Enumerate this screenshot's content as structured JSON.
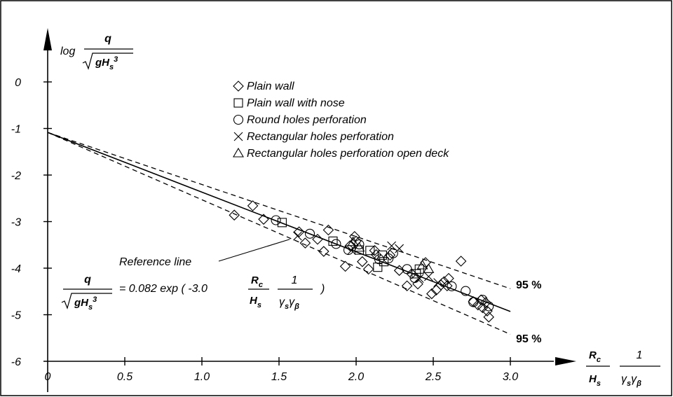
{
  "chart_data": {
    "type": "scatter",
    "title": "",
    "x_axis": {
      "range": [
        0,
        3.0
      ],
      "ticks": [
        0,
        0.5,
        1.0,
        1.5,
        2.0,
        2.5,
        3.0
      ],
      "tick_labels": [
        "0",
        "0.5",
        "1.0",
        "1.5",
        "2.0",
        "2.5",
        "3.0"
      ],
      "label": {
        "num_main": "R",
        "num_sub": "c",
        "den_main": "H",
        "den_sub": "s",
        "factor_num": "1",
        "factor_den_1": "γ",
        "factor_den_sub1": "s",
        "factor_den_2": "γ",
        "factor_den_sub2": "β"
      }
    },
    "y_axis": {
      "range": [
        -6,
        0
      ],
      "ticks": [
        0,
        -1,
        -2,
        -3,
        -4,
        -5,
        -6
      ],
      "tick_labels": [
        "0",
        "-1",
        "-2",
        "-3",
        "-4",
        "-5",
        "-6"
      ],
      "label": {
        "prefix": "log",
        "num": "q",
        "den_main": "gH",
        "den_sub": "s",
        "den_sup": "3"
      }
    },
    "grid": false,
    "legend": {
      "placement": "top-center",
      "entries": [
        {
          "marker": "diamond",
          "label": "Plain wall"
        },
        {
          "marker": "square",
          "label": "Plain wall with nose"
        },
        {
          "marker": "circle",
          "label": "Round holes perforation"
        },
        {
          "marker": "cross",
          "label": "Rectangular holes perforation"
        },
        {
          "marker": "triangle",
          "label": "Rectangular holes perforation open deck"
        }
      ]
    },
    "lines": [
      {
        "role": "reference",
        "label": "Reference line",
        "x": [
          0,
          3.0
        ],
        "y": [
          -1.085,
          -4.93
        ]
      },
      {
        "role": "upper-95",
        "label": "95 %",
        "x": [
          0,
          3.0
        ],
        "y": [
          -1.085,
          -4.44
        ]
      },
      {
        "role": "lower-95",
        "label": "95 %",
        "x": [
          0,
          3.0
        ],
        "y": [
          -1.085,
          -5.42
        ]
      }
    ],
    "formula": {
      "lhs_num": "q",
      "lhs_den_main": "gH",
      "lhs_den_sub": "s",
      "lhs_den_sup": "3",
      "rhs_prefix": "= 0.082 exp ( -3.0",
      "rhs_frac1_num_main": "R",
      "rhs_frac1_num_sub": "c",
      "rhs_frac1_den_main": "H",
      "rhs_frac1_den_sub": "s",
      "rhs_frac2_num": "1",
      "rhs_frac2_den_1": "γ",
      "rhs_frac2_den_sub1": "s",
      "rhs_frac2_den_2": "γ",
      "rhs_frac2_den_sub2": "β",
      "rhs_suffix": ")"
    },
    "series": [
      {
        "name": "Plain wall",
        "marker": "diamond",
        "x": [
          1.21,
          1.33,
          1.4,
          1.63,
          1.67,
          1.75,
          1.79,
          1.82,
          1.96,
          1.93,
          1.99,
          2.04,
          2.08,
          2.13,
          2.22,
          2.28,
          2.33,
          2.36,
          2.4,
          2.45,
          2.49,
          2.52,
          2.55,
          2.57,
          2.59,
          2.6,
          2.76,
          2.79,
          2.81,
          2.82,
          2.84,
          2.85,
          2.86,
          2.68,
          2.0,
          2.12
        ],
        "y": [
          -2.86,
          -2.66,
          -2.95,
          -3.22,
          -3.46,
          -3.38,
          -3.64,
          -3.18,
          -3.52,
          -3.96,
          -3.32,
          -3.86,
          -4.02,
          -3.71,
          -3.72,
          -4.05,
          -4.38,
          -4.12,
          -4.34,
          -3.88,
          -4.55,
          -4.47,
          -4.36,
          -4.29,
          -4.38,
          -4.22,
          -4.72,
          -4.79,
          -4.68,
          -4.85,
          -4.74,
          -4.92,
          -5.05,
          -3.85,
          -3.42,
          -3.62
        ]
      },
      {
        "name": "Plain wall with nose",
        "marker": "square",
        "x": [
          1.52,
          1.85,
          2.02,
          2.09,
          2.14,
          2.17,
          2.18,
          2.39,
          2.41
        ],
        "y": [
          -3.02,
          -3.42,
          -3.61,
          -3.62,
          -3.98,
          -3.72,
          -3.86,
          -4.12,
          -4.02
        ]
      },
      {
        "name": "Round holes perforation",
        "marker": "circle",
        "x": [
          1.48,
          1.7,
          1.87,
          1.95,
          2.02,
          2.15,
          2.21,
          2.24,
          2.33,
          2.38,
          2.62,
          2.71,
          2.76,
          2.82,
          2.86
        ],
        "y": [
          -2.97,
          -3.26,
          -3.48,
          -3.61,
          -3.49,
          -3.81,
          -3.79,
          -3.68,
          -4.02,
          -4.21,
          -4.39,
          -4.49,
          -4.73,
          -4.68,
          -4.82
        ]
      },
      {
        "name": "Rectangular holes perforation",
        "marker": "cross",
        "x": [
          1.62,
          1.97,
          2.23,
          2.28,
          2.41,
          2.47,
          2.53
        ],
        "y": [
          -3.31,
          -3.62,
          -3.52,
          -3.58,
          -4.22,
          -4.18,
          -4.31
        ]
      },
      {
        "name": "Rectangular holes perforation open deck",
        "marker": "triangle",
        "x": [
          1.98,
          2.02,
          2.43,
          2.47
        ],
        "y": [
          -3.44,
          -3.56,
          -3.94,
          -4.02
        ]
      }
    ],
    "annotations": [
      {
        "text": "Reference line",
        "target_x": 1.9,
        "target_y": -3.4
      },
      {
        "text": "95 %",
        "target_x": 3.0,
        "target_y": -4.44
      },
      {
        "text": "95 %",
        "target_x": 3.0,
        "target_y": -5.42
      }
    ]
  }
}
